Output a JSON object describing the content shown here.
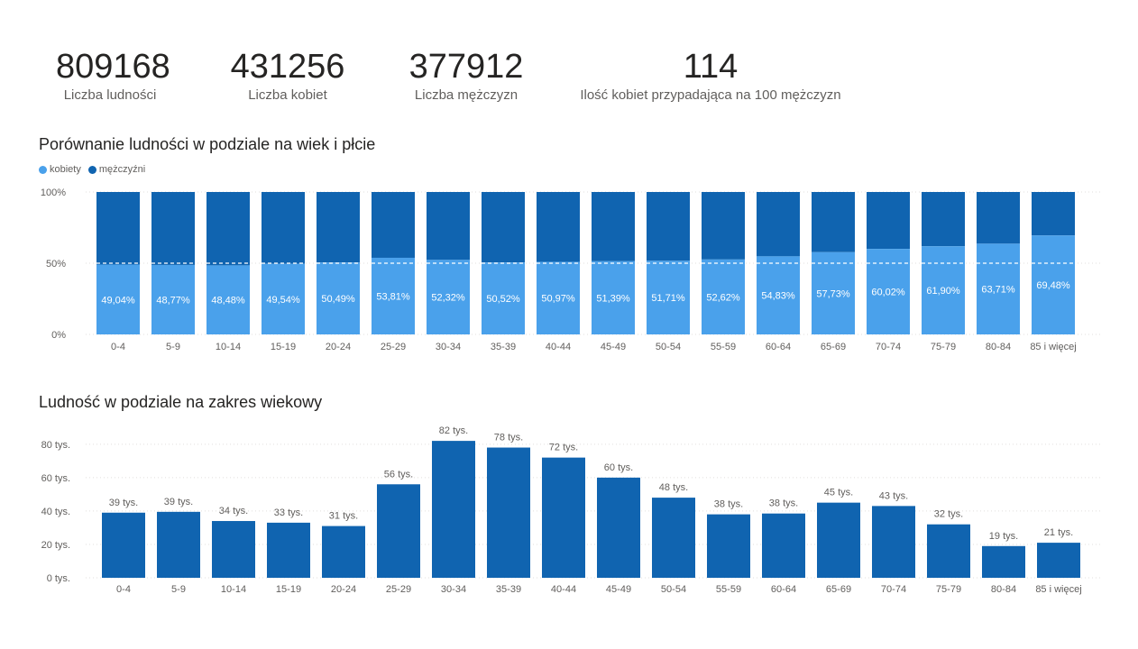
{
  "kpis": [
    {
      "value": "809168",
      "label": "Liczba ludności"
    },
    {
      "value": "431256",
      "label": "Liczba kobiet"
    },
    {
      "value": "377912",
      "label": "Liczba mężczyzn"
    },
    {
      "value": "114",
      "label": "Ilość kobiet przypadająca na 100 mężczyzn"
    }
  ],
  "colors": {
    "women": "#4aa1eb",
    "men": "#1064b0",
    "bar": "#1064b0",
    "axis_text": "#605e5c",
    "grid": "#e1dfdd"
  },
  "chart_data": [
    {
      "type": "bar",
      "stacked": "percent",
      "title": "Porównanie ludności w podziale na wiek i płcie",
      "legend_position": "top-left",
      "categories": [
        "0-4",
        "5-9",
        "10-14",
        "15-19",
        "20-24",
        "25-29",
        "30-34",
        "35-39",
        "40-44",
        "45-49",
        "50-54",
        "55-59",
        "60-64",
        "65-69",
        "70-74",
        "75-79",
        "80-84",
        "85 i więcej"
      ],
      "series": [
        {
          "name": "kobiety",
          "values": [
            49.04,
            48.77,
            48.48,
            49.54,
            50.49,
            53.81,
            52.32,
            50.52,
            50.97,
            51.39,
            51.71,
            52.62,
            54.83,
            57.73,
            60.02,
            61.9,
            63.71,
            69.48
          ]
        },
        {
          "name": "mężczyźni",
          "values": [
            50.96,
            51.23,
            51.52,
            50.46,
            49.51,
            46.19,
            47.68,
            49.48,
            49.03,
            48.61,
            48.29,
            47.38,
            45.17,
            42.27,
            39.98,
            38.1,
            36.29,
            30.52
          ]
        }
      ],
      "data_labels": [
        "49,04%",
        "48,77%",
        "48,48%",
        "49,54%",
        "50,49%",
        "53,81%",
        "52,32%",
        "50,52%",
        "50,97%",
        "51,39%",
        "51,71%",
        "52,62%",
        "54,83%",
        "57,73%",
        "60,02%",
        "61,90%",
        "63,71%",
        "69,48%"
      ],
      "y_ticks": [
        "100%",
        "50%",
        "0%"
      ],
      "reference_line": 50,
      "ylim": [
        0,
        100
      ]
    },
    {
      "type": "bar",
      "title": "Ludność w podziale na zakres wiekowy",
      "categories": [
        "0-4",
        "5-9",
        "10-14",
        "15-19",
        "20-24",
        "25-29",
        "30-34",
        "35-39",
        "40-44",
        "45-49",
        "50-54",
        "55-59",
        "60-64",
        "65-69",
        "70-74",
        "75-79",
        "80-84",
        "85 i więcej"
      ],
      "values": [
        39,
        39.5,
        34,
        33,
        31,
        56,
        82,
        78,
        72,
        60,
        48,
        38,
        38.5,
        45,
        43,
        32,
        19,
        21
      ],
      "data_labels": [
        "39 tys.",
        "39 tys.",
        "34 tys.",
        "33 tys.",
        "31 tys.",
        "56 tys.",
        "82 tys.",
        "78 tys.",
        "72 tys.",
        "60 tys.",
        "48 tys.",
        "38 tys.",
        "38 tys.",
        "45 tys.",
        "43 tys.",
        "32 tys.",
        "19 tys.",
        "21 tys."
      ],
      "y_ticks": [
        "80 tys.",
        "60 tys.",
        "40 tys.",
        "20 tys.",
        "0 tys."
      ],
      "y_tick_values": [
        80,
        60,
        40,
        20,
        0
      ],
      "ylim": [
        0,
        88
      ]
    }
  ]
}
